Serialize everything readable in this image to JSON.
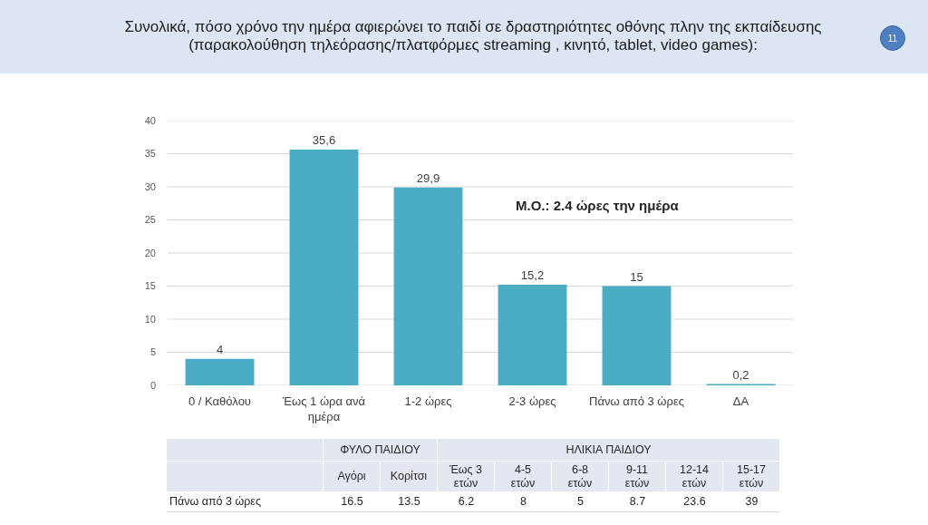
{
  "chart_data": [
    {
      "type": "bar",
      "title": "Συνολικά, πόσο χρόνο την ημέρα αφιερώνει το παιδί σε δραστηριότητες οθόνης πλην της εκπαίδευσης (παρακολούθηση τηλεόρασης/πλατφόρμες streaming , κινητό, tablet, video games):",
      "categories": [
        "0 / Καθόλου",
        "Έως 1 ώρα ανά ημέρα",
        "1-2 ώρες",
        "2-3 ώρες",
        "Πάνω από 3 ώρες",
        "ΔΑ"
      ],
      "values": [
        4,
        35.6,
        29.9,
        15.2,
        15,
        0.2
      ],
      "value_labels": [
        "4",
        "35,6",
        "29,9",
        "15,2",
        "15",
        "0,2"
      ],
      "color": "#4bacc6",
      "ylim": [
        0,
        40
      ],
      "yticks": [
        0,
        5,
        10,
        15,
        20,
        25,
        30,
        35,
        40
      ],
      "grid": "y",
      "annotations": [
        "Μ.Ο.: 2.4 ώρες την ημέρα",
        "11"
      ]
    },
    {
      "type": "other",
      "title": "ΦΥΛΟ ΠΑΙΔΙΟΥ",
      "categories": [
        "Αγόρι",
        "Κορίτσι"
      ],
      "series": [
        {
          "name": "Πάνω από 3 ώρες",
          "values": [
            16.5,
            13.5
          ]
        }
      ],
      "data_labels": true
    },
    {
      "type": "other",
      "title": "ΗΛΙΚΙΑ ΠΑΙΔΙΟΥ",
      "categories": [
        "Έως 3 ετών",
        "4-5 ετών",
        "6-8 ετών",
        "9-11 ετών",
        "12-14 ετών",
        "15-17 ετών"
      ],
      "series": [
        {
          "values": [
            6.2,
            8,
            5,
            8.7,
            23.6,
            39
          ]
        }
      ],
      "data_labels": true
    }
  ]
}
